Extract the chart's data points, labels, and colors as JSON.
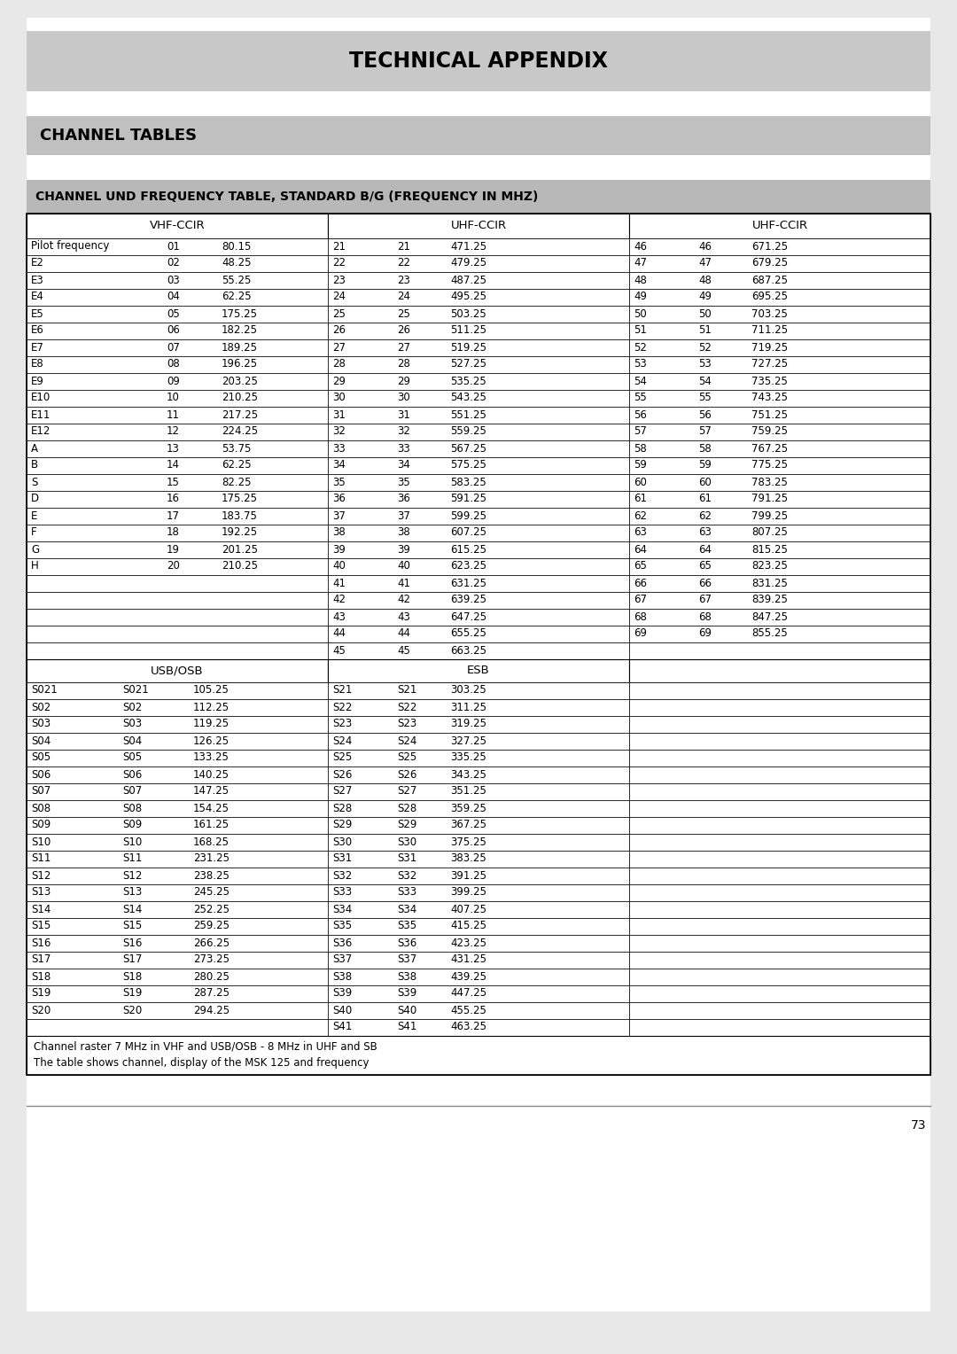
{
  "title": "TECHNICAL APPENDIX",
  "section_title": "CHANNEL TABLES",
  "table_title": "CHANNEL UND FREQUENCY TABLE, STANDARD B/G (FREQUENCY IN MHZ)",
  "vhf_rows": [
    [
      "Pilot frequency",
      "01",
      "80.15"
    ],
    [
      "E2",
      "02",
      "48.25"
    ],
    [
      "E3",
      "03",
      "55.25"
    ],
    [
      "E4",
      "04",
      "62.25"
    ],
    [
      "E5",
      "05",
      "175.25"
    ],
    [
      "E6",
      "06",
      "182.25"
    ],
    [
      "E7",
      "07",
      "189.25"
    ],
    [
      "E8",
      "08",
      "196.25"
    ],
    [
      "E9",
      "09",
      "203.25"
    ],
    [
      "E10",
      "10",
      "210.25"
    ],
    [
      "E11",
      "11",
      "217.25"
    ],
    [
      "E12",
      "12",
      "224.25"
    ],
    [
      "A",
      "13",
      "53.75"
    ],
    [
      "B",
      "14",
      "62.25"
    ],
    [
      "S",
      "15",
      "82.25"
    ],
    [
      "D",
      "16",
      "175.25"
    ],
    [
      "E",
      "17",
      "183.75"
    ],
    [
      "F",
      "18",
      "192.25"
    ],
    [
      "G",
      "19",
      "201.25"
    ],
    [
      "H",
      "20",
      "210.25"
    ]
  ],
  "uhf1_rows": [
    [
      "21",
      "21",
      "471.25"
    ],
    [
      "22",
      "22",
      "479.25"
    ],
    [
      "23",
      "23",
      "487.25"
    ],
    [
      "24",
      "24",
      "495.25"
    ],
    [
      "25",
      "25",
      "503.25"
    ],
    [
      "26",
      "26",
      "511.25"
    ],
    [
      "27",
      "27",
      "519.25"
    ],
    [
      "28",
      "28",
      "527.25"
    ],
    [
      "29",
      "29",
      "535.25"
    ],
    [
      "30",
      "30",
      "543.25"
    ],
    [
      "31",
      "31",
      "551.25"
    ],
    [
      "32",
      "32",
      "559.25"
    ],
    [
      "33",
      "33",
      "567.25"
    ],
    [
      "34",
      "34",
      "575.25"
    ],
    [
      "35",
      "35",
      "583.25"
    ],
    [
      "36",
      "36",
      "591.25"
    ],
    [
      "37",
      "37",
      "599.25"
    ],
    [
      "38",
      "38",
      "607.25"
    ],
    [
      "39",
      "39",
      "615.25"
    ],
    [
      "40",
      "40",
      "623.25"
    ],
    [
      "41",
      "41",
      "631.25"
    ],
    [
      "42",
      "42",
      "639.25"
    ],
    [
      "43",
      "43",
      "647.25"
    ],
    [
      "44",
      "44",
      "655.25"
    ],
    [
      "45",
      "45",
      "663.25"
    ]
  ],
  "uhf2_rows": [
    [
      "46",
      "46",
      "671.25"
    ],
    [
      "47",
      "47",
      "679.25"
    ],
    [
      "48",
      "48",
      "687.25"
    ],
    [
      "49",
      "49",
      "695.25"
    ],
    [
      "50",
      "50",
      "703.25"
    ],
    [
      "51",
      "51",
      "711.25"
    ],
    [
      "52",
      "52",
      "719.25"
    ],
    [
      "53",
      "53",
      "727.25"
    ],
    [
      "54",
      "54",
      "735.25"
    ],
    [
      "55",
      "55",
      "743.25"
    ],
    [
      "56",
      "56",
      "751.25"
    ],
    [
      "57",
      "57",
      "759.25"
    ],
    [
      "58",
      "58",
      "767.25"
    ],
    [
      "59",
      "59",
      "775.25"
    ],
    [
      "60",
      "60",
      "783.25"
    ],
    [
      "61",
      "61",
      "791.25"
    ],
    [
      "62",
      "62",
      "799.25"
    ],
    [
      "63",
      "63",
      "807.25"
    ],
    [
      "64",
      "64",
      "815.25"
    ],
    [
      "65",
      "65",
      "823.25"
    ],
    [
      "66",
      "66",
      "831.25"
    ],
    [
      "67",
      "67",
      "839.25"
    ],
    [
      "68",
      "68",
      "847.25"
    ],
    [
      "69",
      "69",
      "855.25"
    ]
  ],
  "usb_rows": [
    [
      "S021",
      "S021",
      "105.25"
    ],
    [
      "S02",
      "S02",
      "112.25"
    ],
    [
      "S03",
      "S03",
      "119.25"
    ],
    [
      "S04",
      "S04",
      "126.25"
    ],
    [
      "S05",
      "S05",
      "133.25"
    ],
    [
      "S06",
      "S06",
      "140.25"
    ],
    [
      "S07",
      "S07",
      "147.25"
    ],
    [
      "S08",
      "S08",
      "154.25"
    ],
    [
      "S09",
      "S09",
      "161.25"
    ],
    [
      "S10",
      "S10",
      "168.25"
    ],
    [
      "S11",
      "S11",
      "231.25"
    ],
    [
      "S12",
      "S12",
      "238.25"
    ],
    [
      "S13",
      "S13",
      "245.25"
    ],
    [
      "S14",
      "S14",
      "252.25"
    ],
    [
      "S15",
      "S15",
      "259.25"
    ],
    [
      "S16",
      "S16",
      "266.25"
    ],
    [
      "S17",
      "S17",
      "273.25"
    ],
    [
      "S18",
      "S18",
      "280.25"
    ],
    [
      "S19",
      "S19",
      "287.25"
    ],
    [
      "S20",
      "S20",
      "294.25"
    ]
  ],
  "esb_rows": [
    [
      "S21",
      "S21",
      "303.25"
    ],
    [
      "S22",
      "S22",
      "311.25"
    ],
    [
      "S23",
      "S23",
      "319.25"
    ],
    [
      "S24",
      "S24",
      "327.25"
    ],
    [
      "S25",
      "S25",
      "335.25"
    ],
    [
      "S26",
      "S26",
      "343.25"
    ],
    [
      "S27",
      "S27",
      "351.25"
    ],
    [
      "S28",
      "S28",
      "359.25"
    ],
    [
      "S29",
      "S29",
      "367.25"
    ],
    [
      "S30",
      "S30",
      "375.25"
    ],
    [
      "S31",
      "S31",
      "383.25"
    ],
    [
      "S32",
      "S32",
      "391.25"
    ],
    [
      "S33",
      "S33",
      "399.25"
    ],
    [
      "S34",
      "S34",
      "407.25"
    ],
    [
      "S35",
      "S35",
      "415.25"
    ],
    [
      "S36",
      "S36",
      "423.25"
    ],
    [
      "S37",
      "S37",
      "431.25"
    ],
    [
      "S38",
      "S38",
      "439.25"
    ],
    [
      "S39",
      "S39",
      "447.25"
    ],
    [
      "S40",
      "S40",
      "455.25"
    ],
    [
      "S41",
      "S41",
      "463.25"
    ]
  ],
  "footnote1": "Channel raster 7 MHz in VHF and USB/OSB - 8 MHz in UHF and SB",
  "footnote2": "The table shows channel, display of the MSK 125 and frequency",
  "page_number": "73",
  "page_bg": "#e8e8e8",
  "content_bg": "#ffffff",
  "header_bg": "#c8c8c8",
  "section_bg": "#c0c0c0",
  "subtitle_bg": "#b8b8b8",
  "border_color": "#000000",
  "text_color": "#000000"
}
